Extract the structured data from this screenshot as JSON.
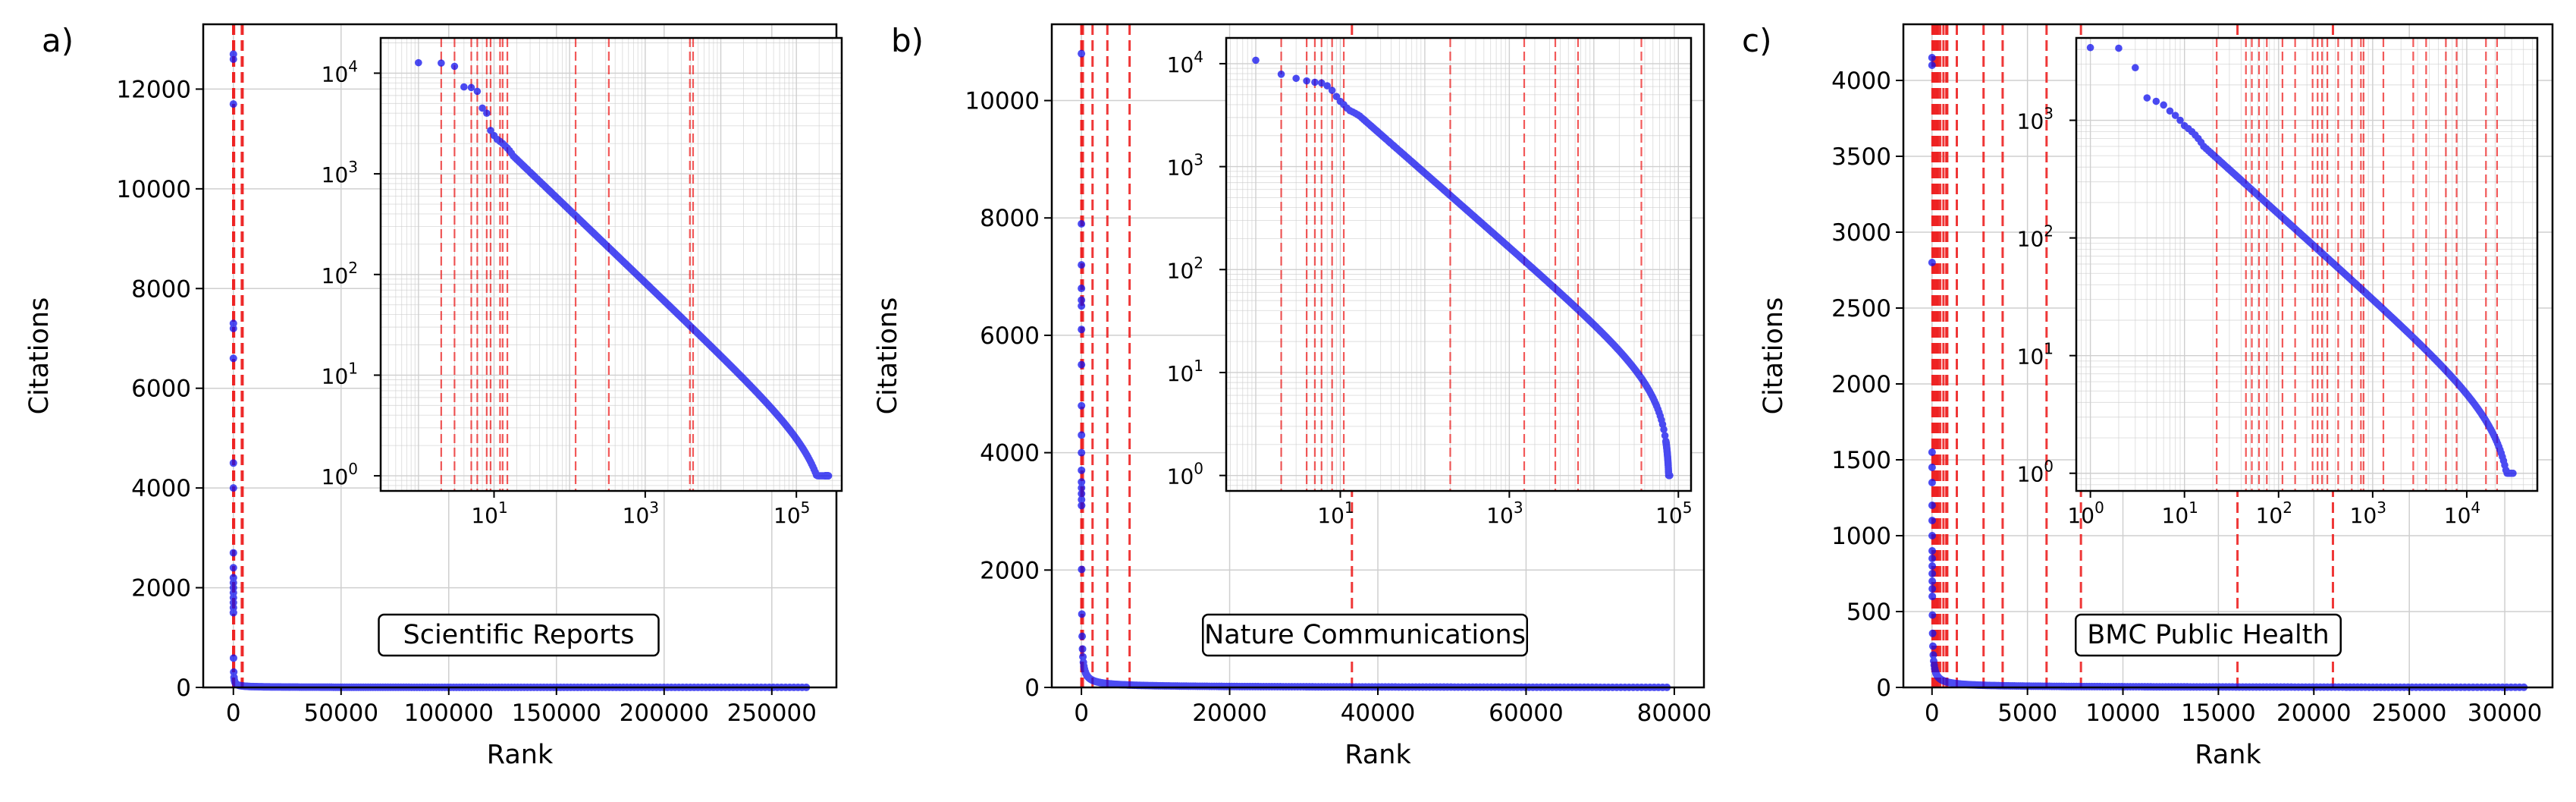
{
  "colors": {
    "points": "#1010ee",
    "vlines": "#ee2222",
    "axis": "#000000",
    "grid": "#cfcfcf"
  },
  "chart_data": [
    {
      "type": "scatter",
      "panel_label": "a)",
      "legend_text": "Scientific Reports",
      "xlabel": "Rank",
      "ylabel": "Citations",
      "xlim": [
        -14000,
        280000
      ],
      "ylim": [
        0,
        13300
      ],
      "xticks": [
        0,
        50000,
        100000,
        150000,
        200000,
        250000
      ],
      "xtick_labels": [
        "0",
        "50000",
        "100000",
        "150000",
        "200000",
        "250000"
      ],
      "yticks": [
        0,
        2000,
        4000,
        6000,
        8000,
        10000,
        12000
      ],
      "ytick_labels": [
        "0",
        "2000",
        "4000",
        "6000",
        "8000",
        "10000",
        "12000"
      ],
      "n_points": 266000,
      "top_citations": [
        12700,
        12600,
        11700,
        7300,
        7200,
        6600,
        4500,
        4000,
        2700,
        2400,
        2200,
        2100,
        2000,
        1900,
        1800,
        1700,
        1600,
        1500
      ],
      "tail_end": 1,
      "vlines": [
        2,
        3,
        5,
        6,
        8,
        9,
        12,
        13,
        15,
        120,
        330,
        3900,
        4300
      ],
      "inset": {
        "xlim_log": [
          -0.5,
          5.6
        ],
        "ylim_log": [
          -0.15,
          4.35
        ],
        "xticks": [
          1,
          3,
          5
        ],
        "xtick_labels": [
          "10",
          "10",
          "10"
        ],
        "xtick_exps": [
          "1",
          "3",
          "5"
        ],
        "yticks": [
          0,
          1,
          2,
          3,
          4
        ],
        "ytick_labels": [
          "10",
          "10",
          "10",
          "10",
          "10"
        ],
        "ytick_exps": [
          "0",
          "1",
          "2",
          "3",
          "4"
        ]
      }
    },
    {
      "type": "scatter",
      "panel_label": "b)",
      "legend_text": "Nature Communications",
      "xlabel": "Rank",
      "ylabel": "Citations",
      "xlim": [
        -4000,
        84000
      ],
      "ylim": [
        0,
        11300
      ],
      "xticks": [
        0,
        20000,
        40000,
        60000,
        80000
      ],
      "xtick_labels": [
        "0",
        "20000",
        "40000",
        "60000",
        "80000"
      ],
      "yticks": [
        0,
        2000,
        4000,
        6000,
        8000,
        10000
      ],
      "ytick_labels": [
        "0",
        "2000",
        "4000",
        "6000",
        "8000",
        "10000"
      ],
      "n_points": 79000,
      "top_citations": [
        10800,
        7900,
        7200,
        6800,
        6600,
        6500,
        6100,
        5500,
        4800,
        4300,
        4000,
        3700,
        3500,
        3400,
        3300,
        3200,
        3100
      ],
      "tail_end": 1,
      "vlines": [
        2,
        4,
        5,
        6,
        8,
        11,
        200,
        1500,
        3500,
        6500,
        36500
      ],
      "inset": {
        "xlim_log": [
          -0.35,
          5.15
        ],
        "ylim_log": [
          -0.15,
          4.25
        ],
        "xticks": [
          1,
          3,
          5
        ],
        "xtick_labels": [
          "10",
          "10",
          "10"
        ],
        "xtick_exps": [
          "1",
          "3",
          "5"
        ],
        "yticks": [
          0,
          1,
          2,
          3,
          4
        ],
        "ytick_labels": [
          "10",
          "10",
          "10",
          "10",
          "10"
        ],
        "ytick_exps": [
          "0",
          "1",
          "2",
          "3",
          "4"
        ]
      }
    },
    {
      "type": "scatter",
      "panel_label": "c)",
      "legend_text": "BMC Public Health",
      "xlabel": "Rank",
      "ylabel": "Citations",
      "xlim": [
        -1500,
        32500
      ],
      "ylim": [
        0,
        4370
      ],
      "xticks": [
        0,
        5000,
        10000,
        15000,
        20000,
        25000,
        30000
      ],
      "xtick_labels": [
        "0",
        "5000",
        "10000",
        "15000",
        "20000",
        "25000",
        "30000"
      ],
      "yticks": [
        0,
        500,
        1000,
        1500,
        2000,
        2500,
        3000,
        3500,
        4000
      ],
      "ytick_labels": [
        "0",
        "500",
        "1000",
        "1500",
        "2000",
        "2500",
        "3000",
        "3500",
        "4000"
      ],
      "n_points": 31000,
      "top_citations": [
        4150,
        4100,
        2800,
        1550,
        1450,
        1350,
        1200,
        1100,
        1000,
        900,
        850,
        800,
        750,
        700,
        650,
        600
      ],
      "tail_end": 1,
      "vlines": [
        22,
        45,
        52,
        62,
        75,
        110,
        150,
        230,
        260,
        290,
        330,
        430,
        600,
        750,
        800,
        1300,
        2700,
        3700,
        6000,
        7800,
        16000,
        21000
      ],
      "inset": {
        "xlim_log": [
          -0.15,
          4.75
        ],
        "ylim_log": [
          -0.15,
          3.7
        ],
        "xticks": [
          0,
          1,
          2,
          3,
          4
        ],
        "xtick_labels": [
          "10",
          "10",
          "10",
          "10",
          "10"
        ],
        "xtick_exps": [
          "0",
          "1",
          "2",
          "3",
          "4"
        ],
        "yticks": [
          0,
          1,
          2,
          3
        ],
        "ytick_labels": [
          "10",
          "10",
          "10",
          "10"
        ],
        "ytick_exps": [
          "0",
          "1",
          "2",
          "3"
        ]
      }
    }
  ]
}
